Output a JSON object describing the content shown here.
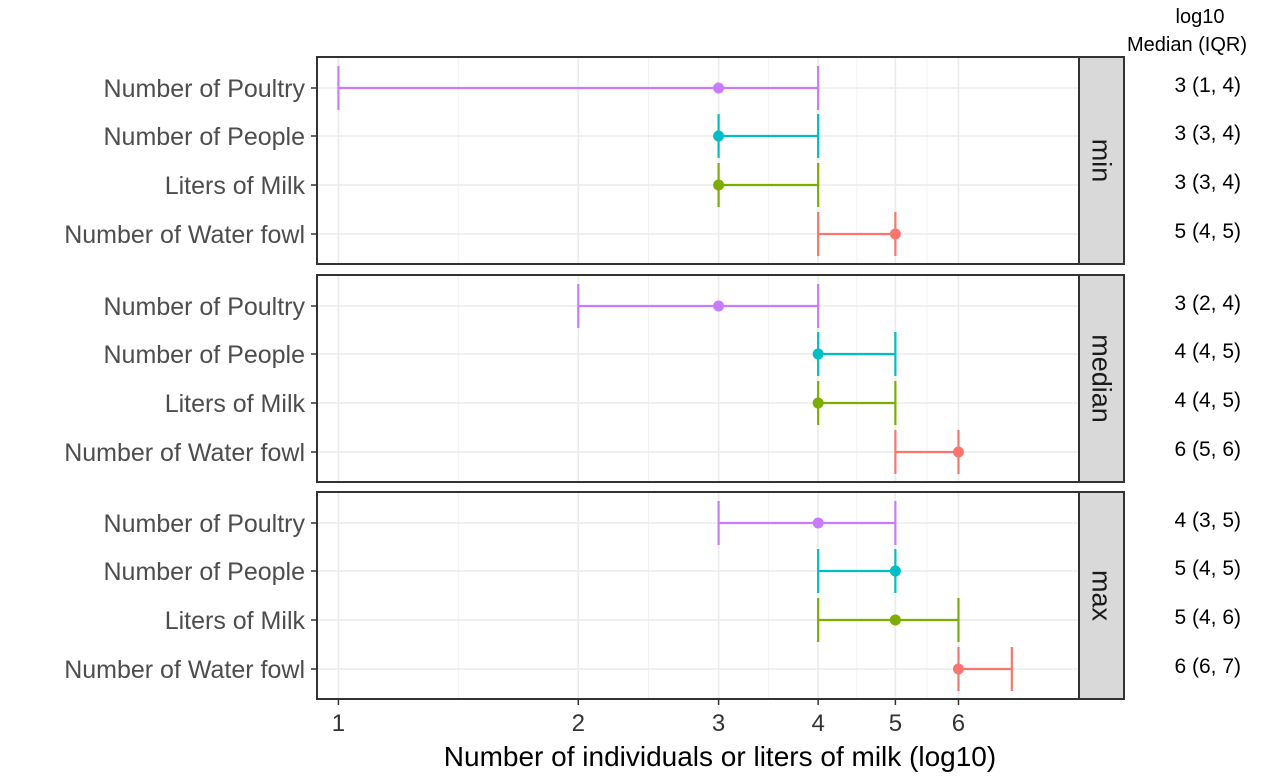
{
  "chart_data": {
    "type": "errorbar",
    "x_scale": "log10",
    "xlabel": "Number of individuals or liters of milk (log10)",
    "x_ticks": [
      1,
      2,
      3,
      4,
      5,
      6
    ],
    "xlim": [
      0.94,
      8.5
    ],
    "grid": true,
    "legend": "none",
    "summary_header": [
      "log10",
      "Median (IQR)"
    ],
    "colors": {
      "Number of Poultry": "#c77cff",
      "Number of People": "#00bfc4",
      "Liters of Milk": "#7cae00",
      "Number of Water fowl": "#f8766d"
    },
    "panels": [
      {
        "label": "min",
        "rows": [
          {
            "name": "Number of Poultry",
            "median": 3,
            "low": 1,
            "high": 4,
            "summary": "3 (1, 4)"
          },
          {
            "name": "Number of People",
            "median": 3,
            "low": 3,
            "high": 4,
            "summary": "3 (3, 4)"
          },
          {
            "name": "Liters of Milk",
            "median": 3,
            "low": 3,
            "high": 4,
            "summary": "3 (3, 4)"
          },
          {
            "name": "Number of Water fowl",
            "median": 5,
            "low": 4,
            "high": 5,
            "summary": "5 (4, 5)"
          }
        ]
      },
      {
        "label": "median",
        "rows": [
          {
            "name": "Number of Poultry",
            "median": 3,
            "low": 2,
            "high": 4,
            "summary": "3 (2, 4)"
          },
          {
            "name": "Number of People",
            "median": 4,
            "low": 4,
            "high": 5,
            "summary": "4 (4, 5)"
          },
          {
            "name": "Liters of Milk",
            "median": 4,
            "low": 4,
            "high": 5,
            "summary": "4 (4, 5)"
          },
          {
            "name": "Number of Water fowl",
            "median": 6,
            "low": 5,
            "high": 6,
            "summary": "6 (5, 6)"
          }
        ]
      },
      {
        "label": "max",
        "rows": [
          {
            "name": "Number of Poultry",
            "median": 4,
            "low": 3,
            "high": 5,
            "summary": "4 (3, 5)"
          },
          {
            "name": "Number of People",
            "median": 5,
            "low": 4,
            "high": 5,
            "summary": "5 (4, 5)"
          },
          {
            "name": "Liters of Milk",
            "median": 5,
            "low": 4,
            "high": 6,
            "summary": "5 (4, 6)"
          },
          {
            "name": "Number of Water fowl",
            "median": 6,
            "low": 6,
            "high": 7,
            "summary": "6 (6, 7)"
          }
        ]
      }
    ]
  }
}
